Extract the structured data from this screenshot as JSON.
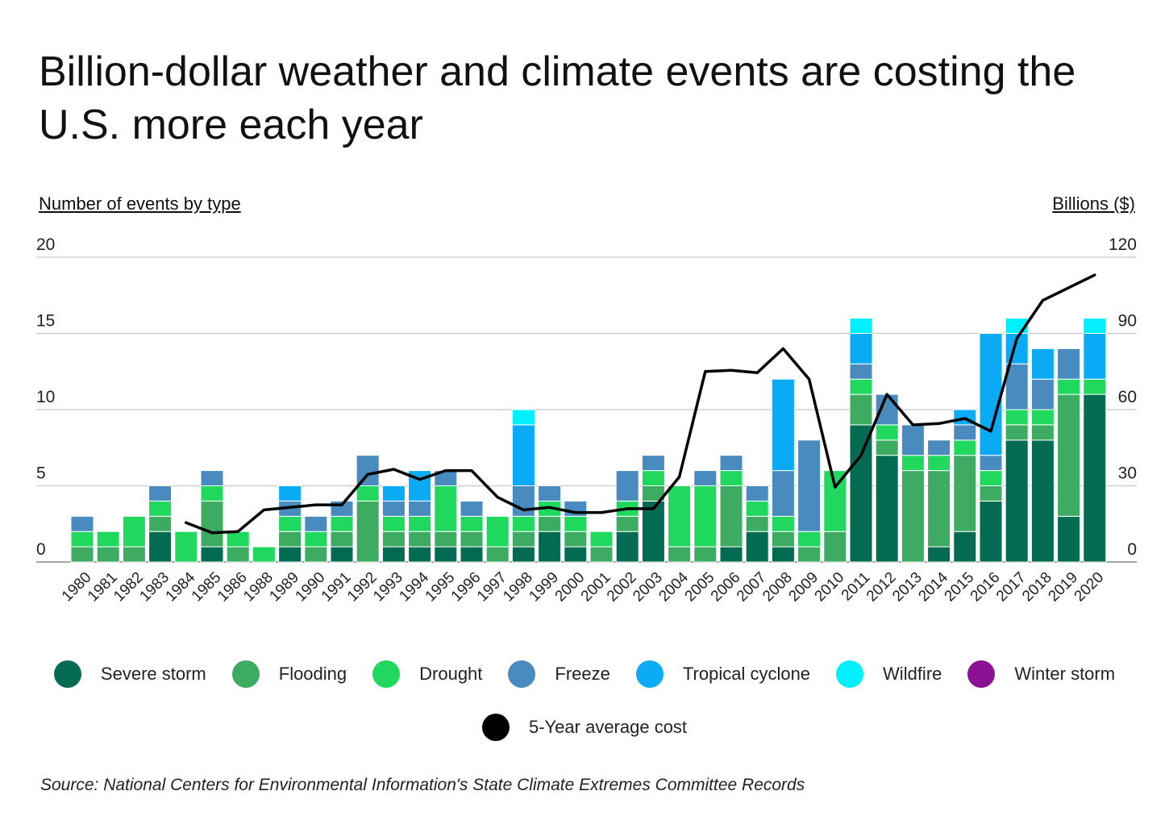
{
  "title": "Billion-dollar weather and climate events are costing the U.S. more each year",
  "left_axis_title": "Number of events by type",
  "right_axis_title": "Billions ($)",
  "source": "Source: National Centers for Environmental Information's State Climate Extremes Committee Records",
  "chart_data": {
    "type": "bar",
    "stacked": true,
    "categories": [
      "1980",
      "1981",
      "1982",
      "1983",
      "1984",
      "1985",
      "1986",
      "1988",
      "1989",
      "1990",
      "1991",
      "1992",
      "1993",
      "1994",
      "1995",
      "1996",
      "1997",
      "1998",
      "1999",
      "2000",
      "2001",
      "2002",
      "2003",
      "2004",
      "2005",
      "2006",
      "2007",
      "2008",
      "2009",
      "2010",
      "2011",
      "2012",
      "2013",
      "2014",
      "2015",
      "2016",
      "2017",
      "2018",
      "2019",
      "2020"
    ],
    "y_left": {
      "label": "Number of events by type",
      "min": 0,
      "max": 20,
      "ticks": [
        "0",
        "5",
        "10",
        "15",
        "20"
      ]
    },
    "y_right": {
      "label": "Billions ($)",
      "min": 0,
      "max": 120,
      "ticks": [
        "0",
        "30",
        "60",
        "90",
        "120"
      ]
    },
    "grid": true,
    "legend_position": "bottom",
    "series": [
      {
        "name": "Severe storm",
        "color": "#036b52",
        "values": [
          0,
          0,
          0,
          2,
          0,
          1,
          0,
          0,
          1,
          0,
          1,
          0,
          1,
          1,
          1,
          1,
          0,
          1,
          2,
          1,
          0,
          2,
          4,
          0,
          0,
          1,
          2,
          1,
          0,
          0,
          9,
          7,
          0,
          1,
          2,
          4,
          8,
          8,
          3,
          11
        ]
      },
      {
        "name": "Flooding",
        "color": "#3dac62",
        "values": [
          1,
          1,
          1,
          1,
          0,
          3,
          1,
          0,
          1,
          1,
          1,
          4,
          1,
          1,
          1,
          1,
          1,
          1,
          1,
          1,
          1,
          1,
          1,
          1,
          1,
          4,
          1,
          1,
          1,
          2,
          2,
          1,
          6,
          5,
          5,
          1,
          1,
          1,
          8,
          0
        ]
      },
      {
        "name": "Drought",
        "color": "#21d85f",
        "values": [
          1,
          1,
          2,
          1,
          2,
          1,
          1,
          1,
          1,
          1,
          1,
          1,
          1,
          1,
          3,
          1,
          2,
          1,
          1,
          1,
          1,
          1,
          1,
          4,
          4,
          1,
          1,
          1,
          1,
          4,
          1,
          1,
          1,
          1,
          1,
          1,
          1,
          1,
          1,
          1
        ]
      },
      {
        "name": "Freeze",
        "color": "#4a8bbf",
        "values": [
          1,
          0,
          0,
          1,
          0,
          1,
          0,
          0,
          1,
          1,
          1,
          2,
          1,
          1,
          1,
          1,
          0,
          2,
          1,
          1,
          0,
          2,
          1,
          0,
          1,
          1,
          1,
          3,
          6,
          0,
          1,
          2,
          2,
          1,
          1,
          1,
          3,
          2,
          2,
          0
        ]
      },
      {
        "name": "Tropical cyclone",
        "color": "#0aaaf4",
        "values": [
          0,
          0,
          0,
          0,
          0,
          0,
          0,
          0,
          1,
          0,
          0,
          0,
          1,
          2,
          0,
          0,
          0,
          4,
          0,
          0,
          0,
          0,
          0,
          0,
          0,
          0,
          0,
          6,
          0,
          0,
          2,
          0,
          0,
          0,
          1,
          8,
          2,
          2,
          0,
          3
        ]
      },
      {
        "name": "Wildfire",
        "color": "#00f0ff",
        "values": [
          0,
          0,
          0,
          0,
          0,
          0,
          0,
          0,
          0,
          0,
          0,
          0,
          0,
          0,
          0,
          0,
          0,
          1,
          0,
          0,
          0,
          0,
          0,
          0,
          0,
          0,
          0,
          0,
          0,
          0,
          1,
          0,
          0,
          0,
          0,
          0,
          1,
          0,
          0,
          1
        ]
      },
      {
        "name": "Winter storm",
        "color": "#8b1194",
        "values": [
          0,
          0,
          0,
          0,
          0,
          0,
          0,
          0,
          0,
          0,
          0,
          0,
          0,
          0,
          0,
          0,
          0,
          0,
          0,
          0,
          0,
          0,
          0,
          0,
          0,
          0,
          0,
          0,
          0,
          0,
          0,
          0,
          0,
          0,
          0,
          0,
          0,
          0,
          0,
          0
        ]
      }
    ],
    "line_series": {
      "name": "5-Year average cost",
      "color": "#000000",
      "axis": "right",
      "start_category": "1984",
      "values": [
        15.5,
        11.5,
        12,
        20.5,
        21.5,
        22.5,
        22.5,
        34.5,
        36.5,
        32.5,
        36,
        36,
        25.5,
        20.5,
        21.5,
        19.5,
        19.5,
        21,
        21,
        33.5,
        75,
        75.5,
        74.5,
        84,
        72,
        29.5,
        42,
        66,
        54,
        54.5,
        56.5,
        51.5,
        88,
        103,
        108,
        113
      ]
    }
  },
  "legend": {
    "row1": [
      {
        "label": "Severe storm",
        "color": "#036b52"
      },
      {
        "label": "Flooding",
        "color": "#3dac62"
      },
      {
        "label": "Drought",
        "color": "#21d85f"
      },
      {
        "label": "Freeze",
        "color": "#4a8bbf"
      },
      {
        "label": "Tropical cyclone",
        "color": "#0aaaf4"
      },
      {
        "label": "Wildfire",
        "color": "#00f0ff"
      },
      {
        "label": "Winter storm",
        "color": "#8b1194"
      }
    ],
    "row2": [
      {
        "label": "5-Year average cost",
        "color": "#000000"
      }
    ]
  }
}
